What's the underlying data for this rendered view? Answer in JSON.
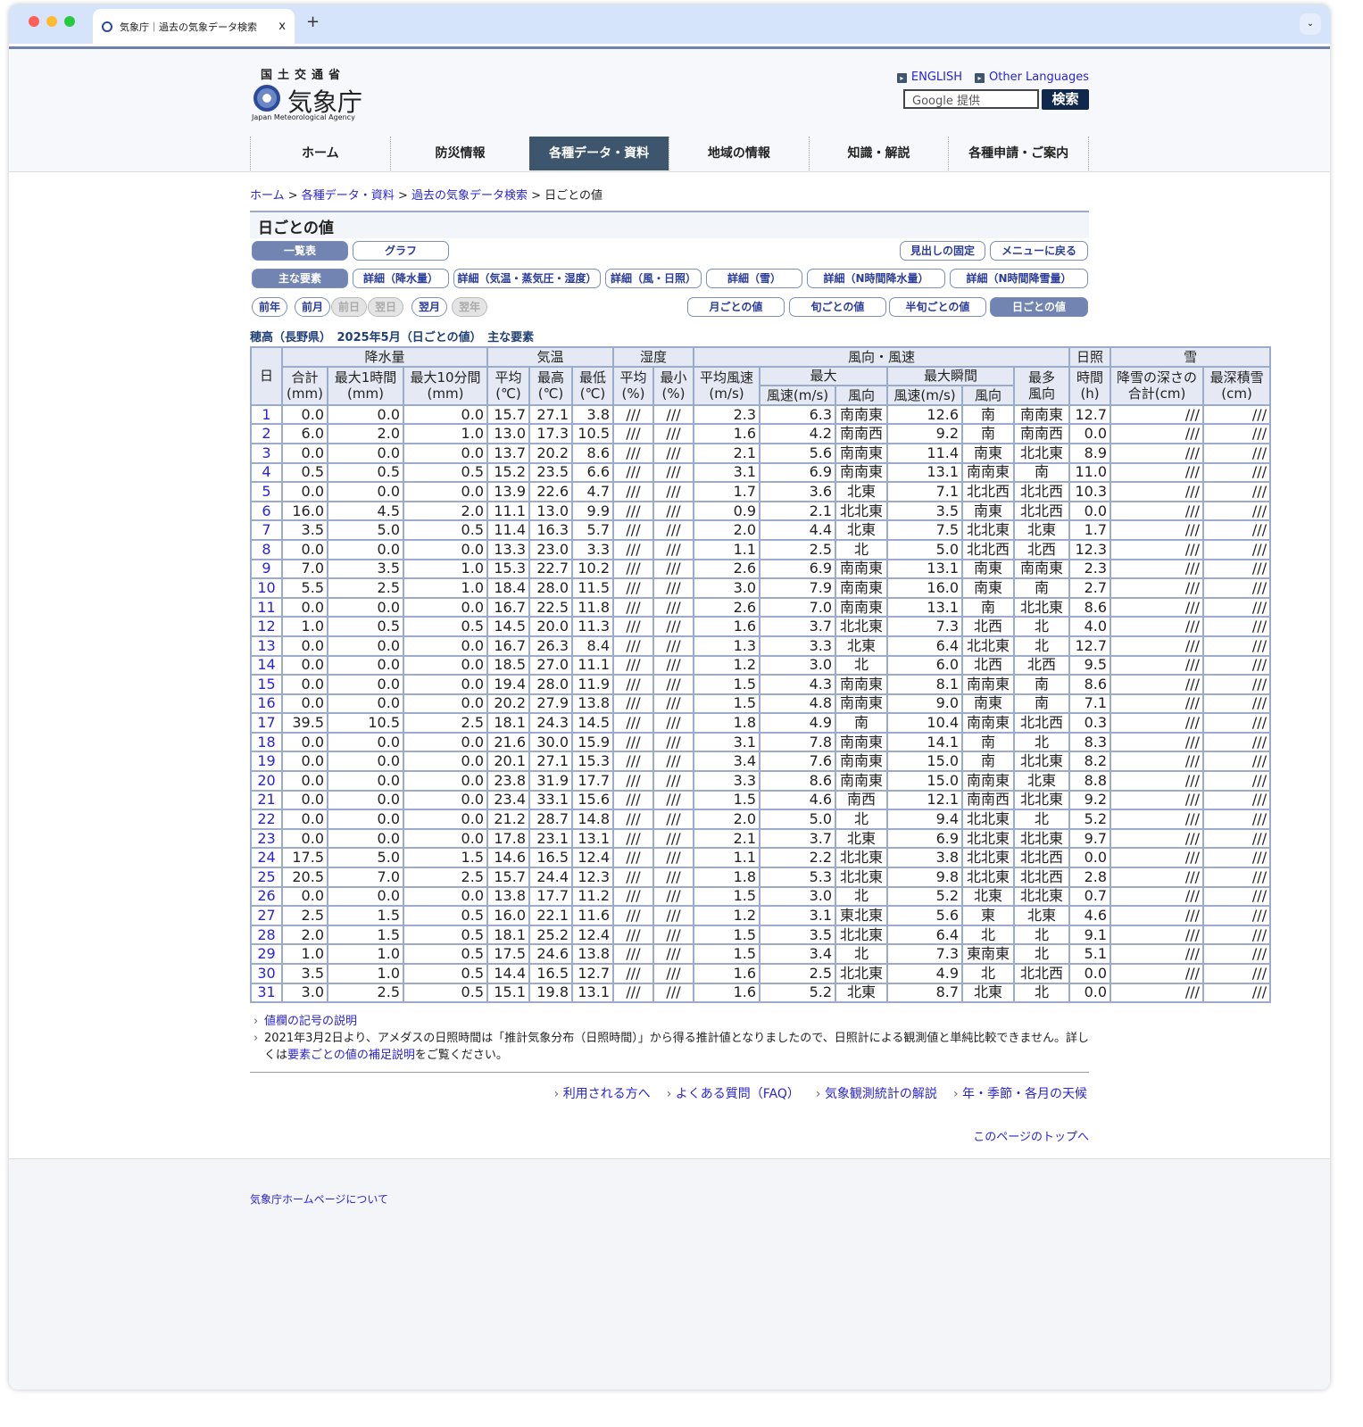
{
  "browser": {
    "tab_title": "気象庁｜過去の気象データ検索",
    "close": "x",
    "new_tab": "+",
    "menu": "⌄"
  },
  "header": {
    "ministry": "国土交通省",
    "agency": "気象庁",
    "agency_en": "Japan Meteorological Agency",
    "english": "ENGLISH",
    "other_languages": "Other Languages",
    "search_placeholder": "Google 提供",
    "search_button": "検索"
  },
  "nav": [
    "ホーム",
    "防災情報",
    "各種データ・資料",
    "地域の情報",
    "知識・解説",
    "各種申請・ご案内"
  ],
  "nav_active": 2,
  "breadcrumb": {
    "items": [
      "ホーム",
      "各種データ・資料",
      "過去の気象データ検索"
    ],
    "current": "日ごとの値",
    "sep": " > "
  },
  "page_title": "日ごとの値",
  "view_buttons": {
    "table": "一覧表",
    "graph": "グラフ",
    "fix_header": "見出しの固定",
    "back_menu": "メニューに戻る"
  },
  "element_tabs": [
    "主な要素",
    "詳細（降水量）",
    "詳細（気温・蒸気圧・湿度）",
    "詳細（風・日照）",
    "詳細（雪）",
    "詳細（N時間降水量）",
    "詳細（N時間降雪量）"
  ],
  "period_nav": [
    "前年",
    "前月",
    "前日",
    "翌日",
    "翌月",
    "翌年"
  ],
  "period_nav_disabled": [
    false,
    false,
    true,
    true,
    false,
    true
  ],
  "period_tabs": [
    "月ごとの値",
    "旬ごとの値",
    "半旬ごとの値",
    "日ごとの値"
  ],
  "table_title": "穂高（長野県）　2025年5月（日ごとの値）　主な要素",
  "table": {
    "h1": {
      "day": "日",
      "precip": "降水量",
      "temp": "気温",
      "humid": "湿度",
      "wind": "風向・風速",
      "sun": "日照",
      "sun2": "時間",
      "sun3": "(h)",
      "snow": "雪"
    },
    "h2": {
      "total": "合計",
      "max1h": "最大1時間",
      "max10m": "最大10分間",
      "avg": "平均",
      "max": "最高",
      "min": "最低",
      "havg": "平均",
      "hmin": "最小",
      "wavg": "平均風速",
      "wmax": "最大",
      "gust": "最大瞬間",
      "mode": "最多",
      "snowfall": "降雪の深さの",
      "snowdepth": "最深積雪"
    },
    "h3": {
      "mm": "(mm)",
      "c": "(℃)",
      "pct": "(%)",
      "ms": "(m/s)",
      "speed": "風速(m/s)",
      "dir": "風向",
      "mode2": "風向",
      "snowfall2": "合計(cm)",
      "cm": "(cm)"
    },
    "rows": [
      [
        "1",
        "0.0",
        "0.0",
        "0.0",
        "15.7",
        "27.1",
        "3.8",
        "///",
        "///",
        "2.3",
        "6.3",
        "南南東",
        "12.6",
        "南",
        "南南東",
        "12.7",
        "///",
        "///"
      ],
      [
        "2",
        "6.0",
        "2.0",
        "1.0",
        "13.0",
        "17.3",
        "10.5",
        "///",
        "///",
        "1.6",
        "4.2",
        "南南西",
        "9.2",
        "南",
        "南南西",
        "0.0",
        "///",
        "///"
      ],
      [
        "3",
        "0.0",
        "0.0",
        "0.0",
        "13.7",
        "20.2",
        "8.6",
        "///",
        "///",
        "2.1",
        "5.6",
        "南南東",
        "11.4",
        "南東",
        "北北東",
        "8.9",
        "///",
        "///"
      ],
      [
        "4",
        "0.5",
        "0.5",
        "0.5",
        "15.2",
        "23.5",
        "6.6",
        "///",
        "///",
        "3.1",
        "6.9",
        "南南東",
        "13.1",
        "南南東",
        "南",
        "11.0",
        "///",
        "///"
      ],
      [
        "5",
        "0.0",
        "0.0",
        "0.0",
        "13.9",
        "22.6",
        "4.7",
        "///",
        "///",
        "1.7",
        "3.6",
        "北東",
        "7.1",
        "北北西",
        "北北西",
        "10.3",
        "///",
        "///"
      ],
      [
        "6",
        "16.0",
        "4.5",
        "2.0",
        "11.1",
        "13.0",
        "9.9",
        "///",
        "///",
        "0.9",
        "2.1",
        "北北東",
        "3.5",
        "南東",
        "北北西",
        "0.0",
        "///",
        "///"
      ],
      [
        "7",
        "3.5",
        "5.0",
        "0.5",
        "11.4",
        "16.3",
        "5.7",
        "///",
        "///",
        "2.0",
        "4.4",
        "北東",
        "7.5",
        "北北東",
        "北東",
        "1.7",
        "///",
        "///"
      ],
      [
        "8",
        "0.0",
        "0.0",
        "0.0",
        "13.3",
        "23.0",
        "3.3",
        "///",
        "///",
        "1.1",
        "2.5",
        "北",
        "5.0",
        "北北西",
        "北西",
        "12.3",
        "///",
        "///"
      ],
      [
        "9",
        "7.0",
        "3.5",
        "1.0",
        "15.3",
        "22.7",
        "10.2",
        "///",
        "///",
        "2.6",
        "6.9",
        "南南東",
        "13.1",
        "南東",
        "南南東",
        "2.3",
        "///",
        "///"
      ],
      [
        "10",
        "5.5",
        "2.5",
        "1.0",
        "18.4",
        "28.0",
        "11.5",
        "///",
        "///",
        "3.0",
        "7.9",
        "南南東",
        "16.0",
        "南東",
        "南",
        "2.7",
        "///",
        "///"
      ],
      [
        "11",
        "0.0",
        "0.0",
        "0.0",
        "16.7",
        "22.5",
        "11.8",
        "///",
        "///",
        "2.6",
        "7.0",
        "南南東",
        "13.1",
        "南",
        "北北東",
        "8.6",
        "///",
        "///"
      ],
      [
        "12",
        "1.0",
        "0.5",
        "0.5",
        "14.5",
        "20.0",
        "11.3",
        "///",
        "///",
        "1.6",
        "3.7",
        "北北東",
        "7.3",
        "北西",
        "北",
        "4.0",
        "///",
        "///"
      ],
      [
        "13",
        "0.0",
        "0.0",
        "0.0",
        "16.7",
        "26.3",
        "8.4",
        "///",
        "///",
        "1.3",
        "3.3",
        "北東",
        "6.4",
        "北北東",
        "北",
        "12.7",
        "///",
        "///"
      ],
      [
        "14",
        "0.0",
        "0.0",
        "0.0",
        "18.5",
        "27.0",
        "11.1",
        "///",
        "///",
        "1.2",
        "3.0",
        "北",
        "6.0",
        "北西",
        "北西",
        "9.5",
        "///",
        "///"
      ],
      [
        "15",
        "0.0",
        "0.0",
        "0.0",
        "19.4",
        "28.0",
        "11.9",
        "///",
        "///",
        "1.5",
        "4.3",
        "南南東",
        "8.1",
        "南南東",
        "南",
        "8.6",
        "///",
        "///"
      ],
      [
        "16",
        "0.0",
        "0.0",
        "0.0",
        "20.2",
        "27.9",
        "13.8",
        "///",
        "///",
        "1.5",
        "4.8",
        "南南東",
        "9.0",
        "南東",
        "南",
        "7.1",
        "///",
        "///"
      ],
      [
        "17",
        "39.5",
        "10.5",
        "2.5",
        "18.1",
        "24.3",
        "14.5",
        "///",
        "///",
        "1.8",
        "4.9",
        "南",
        "10.4",
        "南南東",
        "北北西",
        "0.3",
        "///",
        "///"
      ],
      [
        "18",
        "0.0",
        "0.0",
        "0.0",
        "21.6",
        "30.0",
        "15.9",
        "///",
        "///",
        "3.1",
        "7.8",
        "南南東",
        "14.1",
        "南",
        "北",
        "8.3",
        "///",
        "///"
      ],
      [
        "19",
        "0.0",
        "0.0",
        "0.0",
        "20.1",
        "27.1",
        "15.3",
        "///",
        "///",
        "3.4",
        "7.6",
        "南南東",
        "15.0",
        "南",
        "北北東",
        "8.2",
        "///",
        "///"
      ],
      [
        "20",
        "0.0",
        "0.0",
        "0.0",
        "23.8",
        "31.9",
        "17.7",
        "///",
        "///",
        "3.3",
        "8.6",
        "南南東",
        "15.0",
        "南南東",
        "北東",
        "8.8",
        "///",
        "///"
      ],
      [
        "21",
        "0.0",
        "0.0",
        "0.0",
        "23.4",
        "33.1",
        "15.6",
        "///",
        "///",
        "1.5",
        "4.6",
        "南西",
        "12.1",
        "南南西",
        "北北東",
        "9.2",
        "///",
        "///"
      ],
      [
        "22",
        "0.0",
        "0.0",
        "0.0",
        "21.2",
        "28.7",
        "14.8",
        "///",
        "///",
        "2.0",
        "5.0",
        "北",
        "9.4",
        "北北東",
        "北",
        "5.2",
        "///",
        "///"
      ],
      [
        "23",
        "0.0",
        "0.0",
        "0.0",
        "17.8",
        "23.1",
        "13.1",
        "///",
        "///",
        "2.1",
        "3.7",
        "北東",
        "6.9",
        "北北東",
        "北北東",
        "9.7",
        "///",
        "///"
      ],
      [
        "24",
        "17.5",
        "5.0",
        "1.5",
        "14.6",
        "16.5",
        "12.4",
        "///",
        "///",
        "1.1",
        "2.2",
        "北北東",
        "3.8",
        "北北東",
        "北北西",
        "0.0",
        "///",
        "///"
      ],
      [
        "25",
        "20.5",
        "7.0",
        "2.5",
        "15.7",
        "24.4",
        "12.3",
        "///",
        "///",
        "1.8",
        "5.3",
        "北北東",
        "9.8",
        "北北東",
        "北北西",
        "2.8",
        "///",
        "///"
      ],
      [
        "26",
        "0.0",
        "0.0",
        "0.0",
        "13.8",
        "17.7",
        "11.2",
        "///",
        "///",
        "1.5",
        "3.0",
        "北",
        "5.2",
        "北東",
        "北北東",
        "0.7",
        "///",
        "///"
      ],
      [
        "27",
        "2.5",
        "1.5",
        "0.5",
        "16.0",
        "22.1",
        "11.6",
        "///",
        "///",
        "1.2",
        "3.1",
        "東北東",
        "5.6",
        "東",
        "北東",
        "4.6",
        "///",
        "///"
      ],
      [
        "28",
        "2.0",
        "1.5",
        "0.5",
        "18.1",
        "25.2",
        "12.4",
        "///",
        "///",
        "1.5",
        "3.5",
        "北北東",
        "6.4",
        "北",
        "北",
        "9.1",
        "///",
        "///"
      ],
      [
        "29",
        "1.0",
        "1.0",
        "0.5",
        "17.5",
        "24.6",
        "13.8",
        "///",
        "///",
        "1.5",
        "3.4",
        "北",
        "7.3",
        "東南東",
        "北",
        "5.1",
        "///",
        "///"
      ],
      [
        "30",
        "3.5",
        "1.0",
        "0.5",
        "14.4",
        "16.5",
        "12.7",
        "///",
        "///",
        "1.6",
        "2.5",
        "北北東",
        "4.9",
        "北",
        "北北西",
        "0.0",
        "///",
        "///"
      ],
      [
        "31",
        "3.0",
        "2.5",
        "0.5",
        "15.1",
        "19.8",
        "13.1",
        "///",
        "///",
        "1.6",
        "5.2",
        "北東",
        "8.7",
        "北東",
        "北",
        "0.0",
        "///",
        "///"
      ]
    ]
  },
  "notes": {
    "legend_link": "値欄の記号の説明",
    "note_pre": "2021年3月2日より、アメダスの日照時間は「推計気象分布（日照時間）」から得る推計値となりましたので、日照計による観測値と単純比較できません。詳しくは",
    "note_link": "要素ごとの値の補足説明",
    "note_post": "をご覧ください。"
  },
  "footer_links": [
    "利用される方へ",
    "よくある質問（FAQ）",
    "気象観測統計の解説",
    "年・季節・各月の天候"
  ],
  "page_top": "このページのトップへ",
  "footer": {
    "about": "気象庁ホームページについて"
  },
  "colors": {
    "nav_active": "#3d566e",
    "table_border": "#9aabcb",
    "header_bg": "#e4e9f3",
    "link": "#2a24d4",
    "button_on": "#7184b2"
  }
}
